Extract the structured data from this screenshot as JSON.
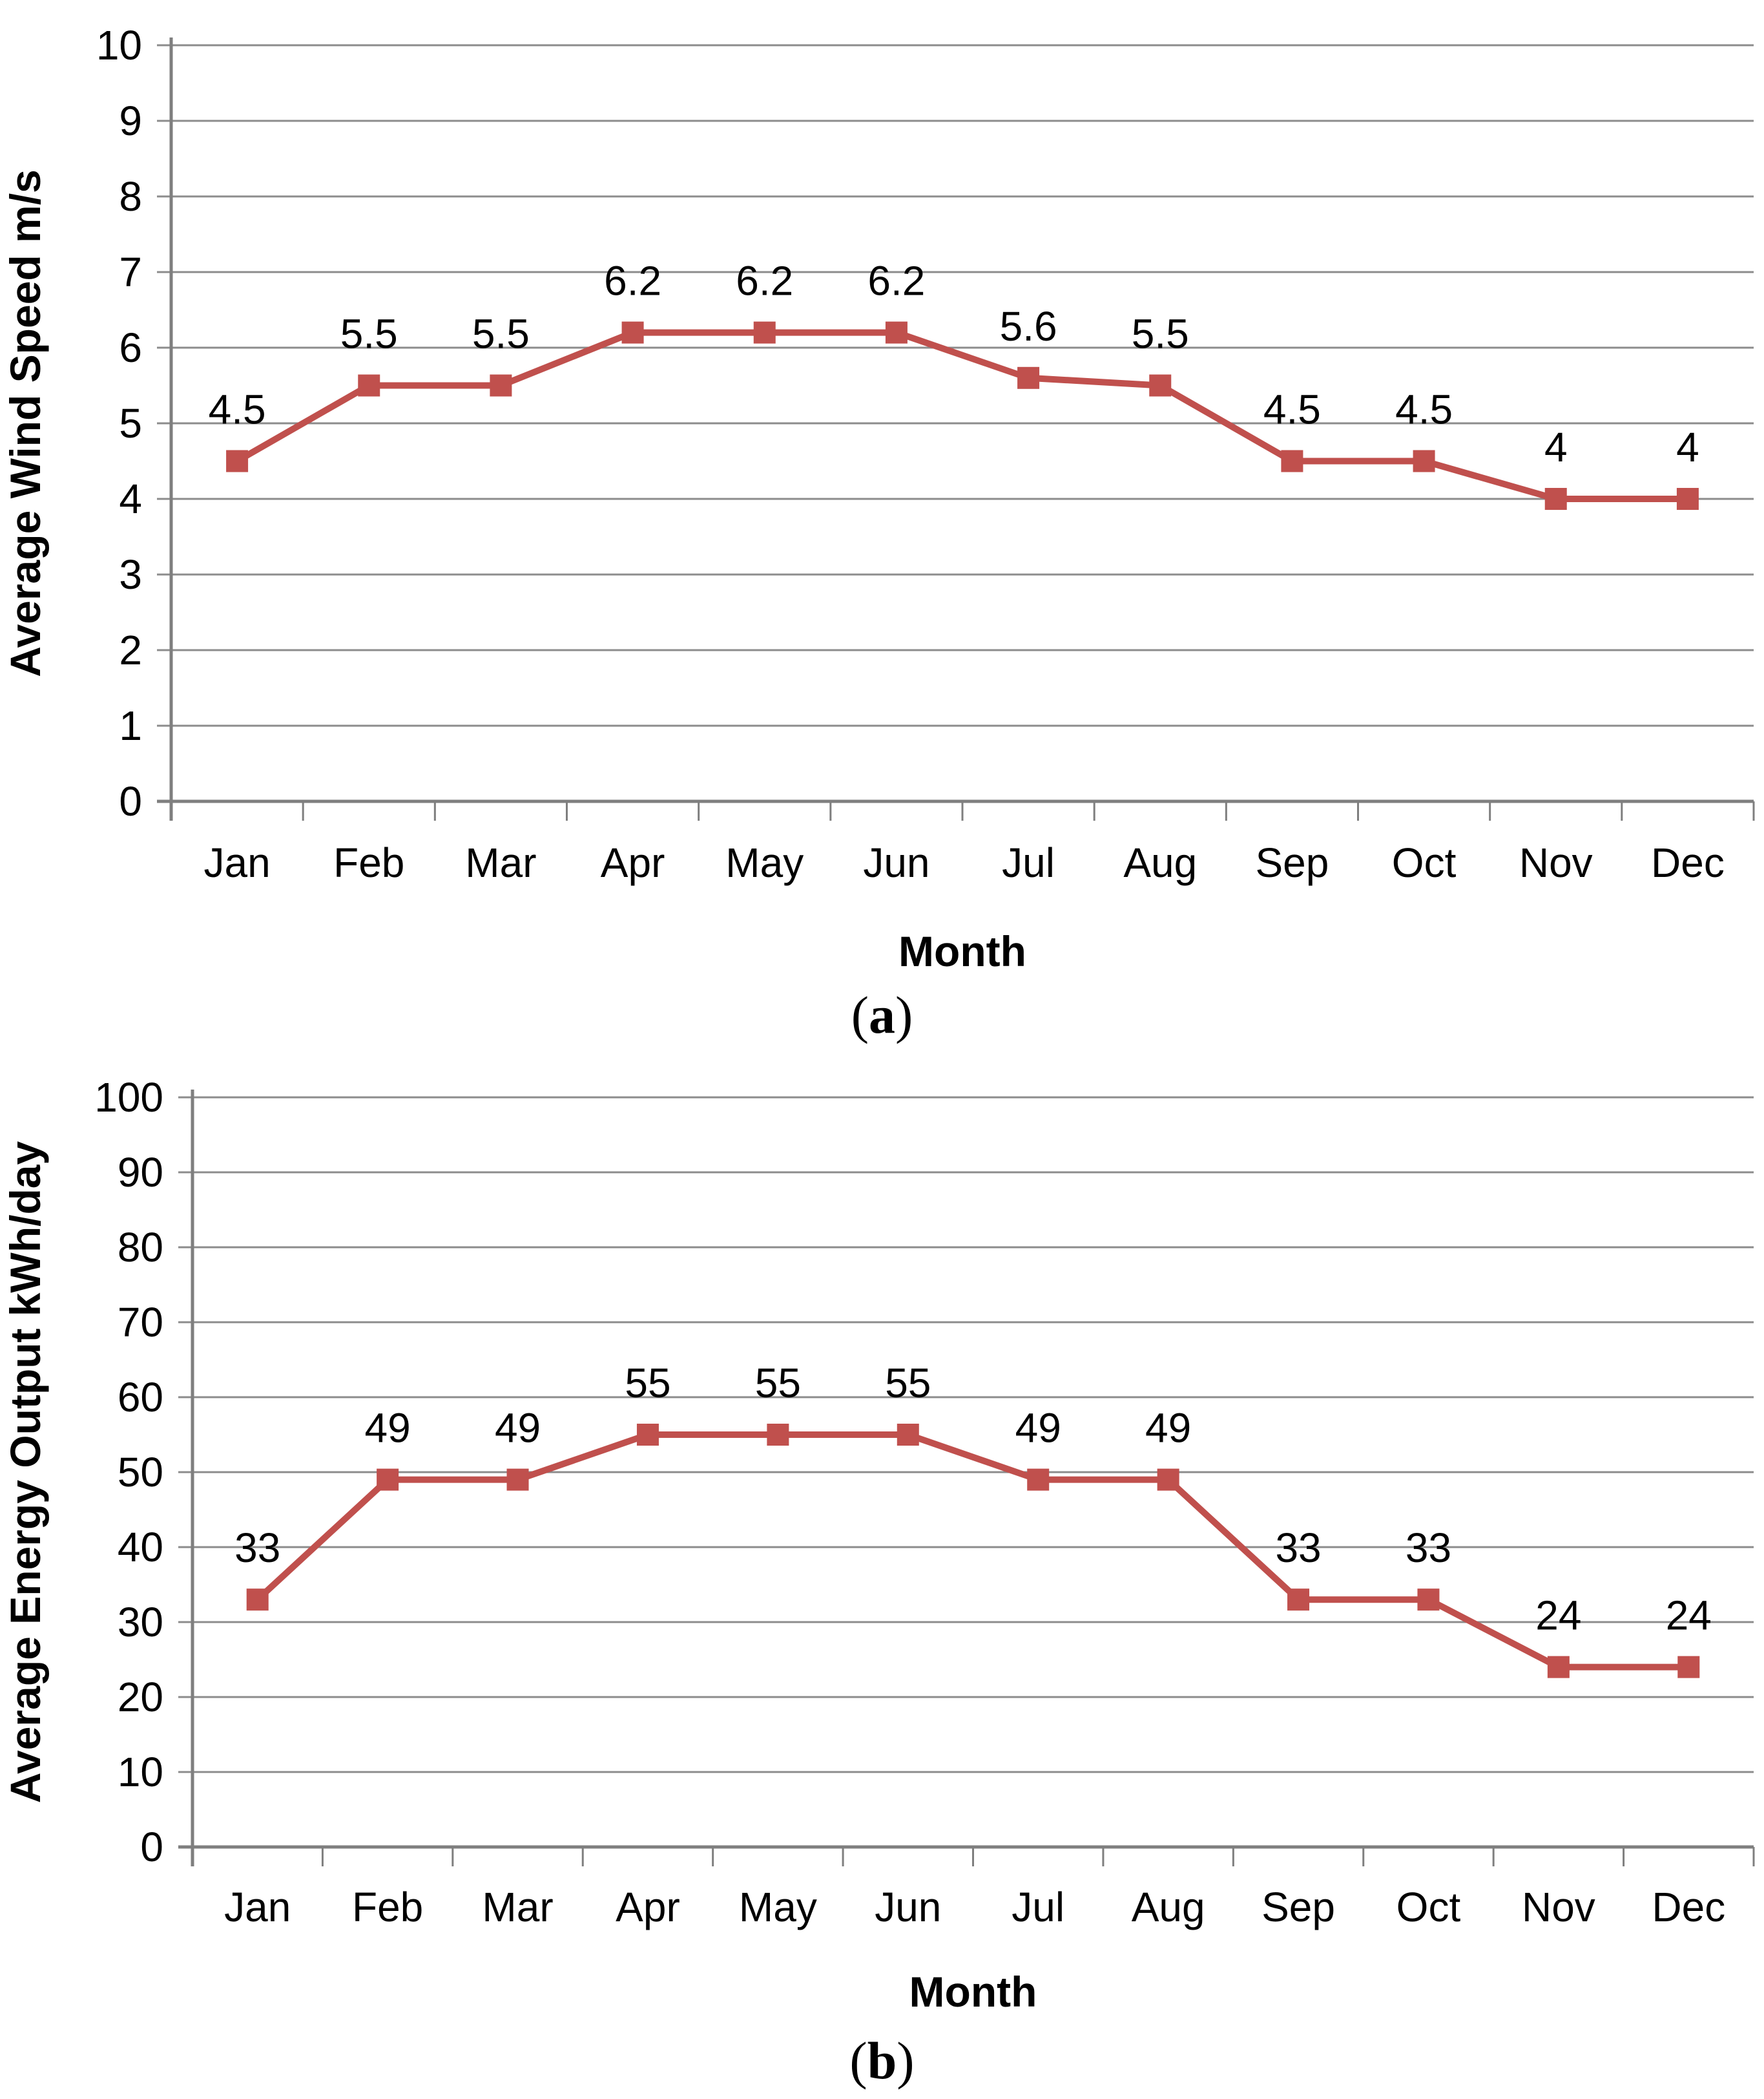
{
  "page": {
    "background": "#FFFFFF"
  },
  "chart_data": [
    {
      "id": "a",
      "type": "line",
      "caption": {
        "open": "(",
        "letter": "a",
        "close": ")"
      },
      "xlabel": "Month",
      "ylabel": "Average Wind Speed m/s",
      "categories": [
        "Jan",
        "Feb",
        "Mar",
        "Apr",
        "May",
        "Jun",
        "Jul",
        "Aug",
        "Sep",
        "Oct",
        "Nov",
        "Dec"
      ],
      "values": [
        4.5,
        5.5,
        5.5,
        6.2,
        6.2,
        6.2,
        5.6,
        5.5,
        4.5,
        4.5,
        4,
        4
      ],
      "point_labels": [
        "4.5",
        "5.5",
        "5.5",
        "6.2",
        "6.2",
        "6.2",
        "5.6",
        "5.5",
        "4.5",
        "4.5",
        "4",
        "4"
      ],
      "ylim": [
        0,
        10
      ],
      "yticks": [
        0,
        1,
        2,
        3,
        4,
        5,
        6,
        7,
        8,
        9,
        10
      ],
      "grid": true,
      "legend": "none",
      "marker": "square",
      "colors": {
        "series": "#C0504D",
        "grid": "#8C8C8C",
        "axis": "#7F7F7F",
        "text": "#000000"
      }
    },
    {
      "id": "b",
      "type": "line",
      "caption": {
        "open": "(",
        "letter": "b",
        "close": ")"
      },
      "xlabel": "Month",
      "ylabel": "Average Energy Output kWh/day",
      "categories": [
        "Jan",
        "Feb",
        "Mar",
        "Apr",
        "May",
        "Jun",
        "Jul",
        "Aug",
        "Sep",
        "Oct",
        "Nov",
        "Dec"
      ],
      "values": [
        33,
        49,
        49,
        55,
        55,
        55,
        49,
        49,
        33,
        33,
        24,
        24
      ],
      "point_labels": [
        "33",
        "49",
        "49",
        "55",
        "55",
        "55",
        "49",
        "49",
        "33",
        "33",
        "24",
        "24"
      ],
      "ylim": [
        0,
        100
      ],
      "yticks": [
        0,
        10,
        20,
        30,
        40,
        50,
        60,
        70,
        80,
        90,
        100
      ],
      "grid": true,
      "legend": "none",
      "marker": "square",
      "colors": {
        "series": "#C0504D",
        "grid": "#8C8C8C",
        "axis": "#7F7F7F",
        "text": "#000000"
      }
    }
  ]
}
